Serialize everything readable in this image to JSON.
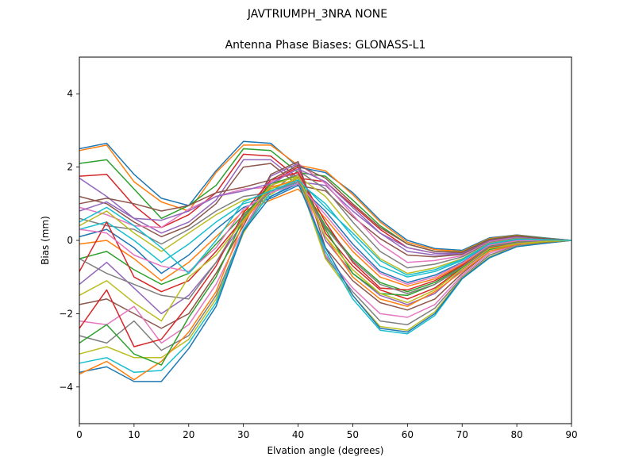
{
  "chart_data": {
    "type": "line",
    "suptitle": "JAVTRIUMPH_3NRA NONE",
    "title": "Antenna Phase Biases: GLONASS-L1",
    "xlabel": "Elvation angle (degrees)",
    "ylabel": "Bias (mm)",
    "xlim": [
      0,
      90
    ],
    "ylim": [
      -5,
      5
    ],
    "xticks": [
      0,
      10,
      20,
      30,
      40,
      50,
      60,
      70,
      80,
      90
    ],
    "yticks": [
      -4,
      -2,
      0,
      2,
      4
    ],
    "x": [
      0,
      5,
      10,
      15,
      20,
      25,
      30,
      35,
      40,
      45,
      50,
      55,
      60,
      65,
      70,
      75,
      80,
      85,
      90
    ],
    "colors": [
      "#1f77b4",
      "#ff7f0e",
      "#2ca02c",
      "#d62728",
      "#9467bd",
      "#8c564b",
      "#e377c2",
      "#7f7f7f",
      "#bcbd22",
      "#17becf"
    ],
    "series": [
      {
        "values": [
          2.5,
          2.65,
          1.8,
          1.15,
          0.95,
          1.9,
          2.7,
          2.65,
          2.0,
          1.85,
          1.3,
          0.55,
          0.0,
          -0.22,
          -0.27,
          0.07,
          0.15,
          0.07,
          0.0
        ]
      },
      {
        "values": [
          2.45,
          2.6,
          1.6,
          1.05,
          0.8,
          1.85,
          2.6,
          2.6,
          2.05,
          1.9,
          1.25,
          0.5,
          -0.05,
          -0.25,
          -0.3,
          0.05,
          0.14,
          0.06,
          0.0
        ]
      },
      {
        "values": [
          2.1,
          2.2,
          1.4,
          0.6,
          0.95,
          1.5,
          2.5,
          2.45,
          1.85,
          1.75,
          1.1,
          0.4,
          -0.1,
          -0.3,
          -0.32,
          0.03,
          0.13,
          0.06,
          0.0
        ]
      },
      {
        "values": [
          1.75,
          1.8,
          0.95,
          0.35,
          0.7,
          1.3,
          2.35,
          2.3,
          1.7,
          1.6,
          0.95,
          0.3,
          -0.2,
          -0.35,
          -0.35,
          0.02,
          0.12,
          0.05,
          0.0
        ]
      },
      {
        "values": [
          1.7,
          1.2,
          0.6,
          0.2,
          0.5,
          1.1,
          2.2,
          2.2,
          1.6,
          1.5,
          0.8,
          0.2,
          -0.3,
          -0.4,
          -0.37,
          0.0,
          0.11,
          0.05,
          0.0
        ]
      },
      {
        "values": [
          1.2,
          1.0,
          0.5,
          0.1,
          0.4,
          1.0,
          2.0,
          2.1,
          1.5,
          1.35,
          0.65,
          0.05,
          -0.4,
          -0.45,
          -0.38,
          -0.02,
          0.1,
          0.04,
          0.0
        ]
      },
      {
        "values": [
          0.9,
          0.7,
          0.4,
          0.35,
          0.85,
          1.2,
          1.4,
          1.45,
          2.1,
          1.55,
          0.7,
          -0.1,
          -0.6,
          -0.55,
          -0.42,
          -0.04,
          0.08,
          0.04,
          0.0
        ]
      },
      {
        "values": [
          0.6,
          0.4,
          0.3,
          -0.1,
          0.3,
          0.8,
          1.2,
          1.3,
          1.9,
          1.4,
          0.5,
          -0.3,
          -0.75,
          -0.65,
          -0.45,
          -0.06,
          0.06,
          0.03,
          0.0
        ]
      },
      {
        "values": [
          0.4,
          0.8,
          0.2,
          -0.3,
          0.2,
          0.7,
          1.1,
          1.25,
          1.75,
          1.2,
          0.3,
          -0.5,
          -0.9,
          -0.75,
          -0.5,
          -0.08,
          0.04,
          0.02,
          0.0
        ]
      },
      {
        "values": [
          0.3,
          0.5,
          0.0,
          -0.6,
          -0.1,
          0.5,
          1.0,
          1.2,
          1.6,
          1.0,
          0.1,
          -0.7,
          -1.0,
          -0.85,
          -0.55,
          -0.1,
          0.02,
          0.02,
          0.0
        ]
      },
      {
        "values": [
          0.1,
          0.3,
          -0.2,
          -0.9,
          -0.4,
          0.3,
          0.9,
          1.15,
          1.5,
          0.8,
          -0.1,
          -0.85,
          -1.15,
          -0.95,
          -0.6,
          -0.12,
          0.0,
          0.01,
          0.0
        ]
      },
      {
        "values": [
          -0.1,
          0.0,
          -0.5,
          -1.1,
          -0.6,
          0.1,
          0.8,
          1.1,
          1.4,
          0.6,
          -0.3,
          -1.0,
          -1.25,
          -1.05,
          -0.65,
          -0.14,
          -0.02,
          0.0,
          0.0
        ]
      },
      {
        "values": [
          -0.5,
          -0.3,
          -0.8,
          -1.2,
          -0.9,
          -0.1,
          0.7,
          1.4,
          1.7,
          0.4,
          -0.5,
          -1.15,
          -1.4,
          -1.15,
          -0.7,
          -0.16,
          -0.05,
          -0.01,
          0.0
        ]
      },
      {
        "values": [
          -0.85,
          0.5,
          -1.0,
          -1.4,
          -1.1,
          -0.3,
          0.6,
          1.6,
          2.0,
          0.2,
          -0.7,
          -1.35,
          -1.6,
          -1.3,
          -0.75,
          -0.2,
          -0.08,
          -0.02,
          0.0
        ]
      },
      {
        "values": [
          -1.2,
          -0.6,
          -1.3,
          -2.0,
          -1.5,
          -0.6,
          0.5,
          1.75,
          2.1,
          0.0,
          -0.9,
          -1.5,
          -1.75,
          -1.45,
          -0.8,
          -0.25,
          -0.1,
          -0.03,
          0.0
        ]
      },
      {
        "values": [
          -1.75,
          -1.6,
          -2.0,
          -2.4,
          -2.0,
          -0.9,
          0.4,
          1.8,
          2.15,
          -0.2,
          -1.1,
          -1.7,
          -1.9,
          -1.6,
          -0.9,
          -0.3,
          -0.12,
          -0.04,
          0.0
        ]
      },
      {
        "values": [
          -2.2,
          -2.3,
          -1.8,
          -2.8,
          -2.3,
          -1.2,
          0.3,
          1.6,
          1.95,
          -0.4,
          -1.3,
          -2.0,
          -2.1,
          -1.75,
          -0.95,
          -0.35,
          -0.14,
          -0.05,
          0.0
        ]
      },
      {
        "values": [
          -2.6,
          -2.8,
          -2.2,
          -3.0,
          -2.6,
          -1.5,
          0.25,
          1.5,
          1.8,
          -0.45,
          -1.4,
          -2.2,
          -2.3,
          -1.85,
          -1.0,
          -0.4,
          -0.15,
          -0.06,
          0.0
        ]
      },
      {
        "values": [
          -3.1,
          -2.9,
          -3.2,
          -3.2,
          -2.7,
          -1.6,
          0.2,
          1.4,
          1.7,
          -0.5,
          -1.5,
          -2.35,
          -2.45,
          -1.95,
          -1.02,
          -0.45,
          -0.16,
          -0.07,
          0.0
        ]
      },
      {
        "values": [
          -3.35,
          -3.2,
          -3.6,
          -3.55,
          -2.8,
          -1.7,
          0.3,
          1.3,
          1.6,
          -0.3,
          -1.6,
          -2.45,
          -2.55,
          -2.05,
          -1.05,
          -0.48,
          -0.17,
          -0.08,
          0.0
        ]
      },
      {
        "values": [
          -3.6,
          -3.45,
          -3.85,
          -3.85,
          -2.95,
          -1.8,
          0.25,
          1.2,
          1.55,
          -0.2,
          -1.5,
          -2.4,
          -2.5,
          -2.0,
          -1.04,
          -0.47,
          -0.17,
          -0.08,
          0.0
        ]
      },
      {
        "values": [
          -3.65,
          -3.3,
          -3.8,
          -3.3,
          -2.5,
          -1.4,
          0.5,
          1.45,
          1.65,
          0.1,
          -1.0,
          -1.6,
          -1.8,
          -1.4,
          -0.85,
          -0.3,
          -0.1,
          -0.05,
          0.0
        ]
      },
      {
        "values": [
          -2.8,
          -2.3,
          -3.1,
          -3.4,
          -2.1,
          -1.0,
          0.6,
          1.55,
          1.75,
          0.3,
          -0.9,
          -1.45,
          -1.5,
          -1.2,
          -0.75,
          -0.25,
          -0.08,
          -0.04,
          0.0
        ]
      },
      {
        "values": [
          -2.4,
          -1.35,
          -2.9,
          -2.7,
          -1.75,
          -0.7,
          0.75,
          1.65,
          1.85,
          0.5,
          -0.6,
          -1.3,
          -1.35,
          -1.1,
          -0.68,
          -0.2,
          -0.06,
          -0.03,
          0.0
        ]
      },
      {
        "values": [
          0.8,
          1.05,
          0.6,
          0.55,
          0.8,
          1.2,
          1.35,
          1.55,
          1.95,
          1.6,
          0.9,
          0.2,
          -0.2,
          -0.35,
          -0.35,
          0.0,
          0.1,
          0.05,
          0.0
        ]
      },
      {
        "values": [
          1.0,
          1.15,
          1.0,
          0.8,
          0.95,
          1.3,
          1.45,
          1.65,
          2.05,
          1.7,
          1.0,
          0.35,
          -0.1,
          -0.3,
          -0.33,
          0.02,
          0.12,
          0.05,
          0.0
        ]
      },
      {
        "values": [
          0.3,
          0.2,
          -0.4,
          -0.7,
          -0.85,
          -0.2,
          0.85,
          1.3,
          1.55,
          0.7,
          -0.2,
          -0.9,
          -1.2,
          -1.0,
          -0.62,
          -0.13,
          -0.01,
          0.0,
          0.0
        ]
      },
      {
        "values": [
          -0.5,
          -0.9,
          -1.2,
          -1.5,
          -1.6,
          -0.6,
          0.65,
          1.35,
          1.6,
          0.35,
          -0.55,
          -1.2,
          -1.45,
          -1.2,
          -0.72,
          -0.17,
          -0.06,
          -0.02,
          0.0
        ]
      },
      {
        "values": [
          -1.5,
          -1.1,
          -1.7,
          -2.2,
          -1.0,
          -0.4,
          0.55,
          1.5,
          1.75,
          0.1,
          -0.8,
          -1.45,
          -1.7,
          -1.35,
          -0.78,
          -0.22,
          -0.09,
          -0.03,
          0.0
        ]
      },
      {
        "values": [
          0.5,
          0.9,
          0.4,
          -0.2,
          -0.9,
          0.0,
          1.05,
          1.35,
          1.65,
          0.9,
          0.2,
          -0.55,
          -0.95,
          -0.8,
          -0.52,
          -0.09,
          0.03,
          0.02,
          0.0
        ]
      }
    ]
  }
}
